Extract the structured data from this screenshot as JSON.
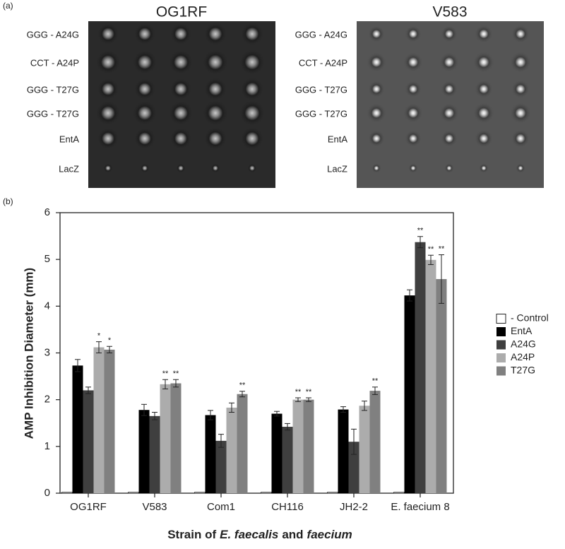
{
  "panel_a": {
    "label": "(a)",
    "plates": [
      {
        "title": "OG1RF",
        "rows": [
          "GGG - A24G",
          "CCT -  A24P",
          "GGG - T27G",
          "GGG - T27G",
          "EntA",
          "LacZ"
        ]
      },
      {
        "title": "V583",
        "rows": [
          "GGG - A24G",
          "CCT -  A24P",
          "GGG - T27G",
          "GGG - T27G",
          "EntA",
          "LacZ"
        ]
      }
    ]
  },
  "chart_data": {
    "type": "bar",
    "label": "(b)",
    "ylabel": "AMP Inhibition Diameter (mm)",
    "xlabel": [
      "Strain of",
      "E. faecalis",
      "and",
      "faecium"
    ],
    "categories": [
      "OG1RF",
      "V583",
      "Com1",
      "CH116",
      "JH2-2",
      "E. faecium 8"
    ],
    "ylim": [
      0,
      6
    ],
    "yticks": [
      0,
      1,
      2,
      3,
      4,
      5,
      6
    ],
    "legend": "right",
    "series": [
      {
        "name": "- Control",
        "color": "#ffffff",
        "values": [
          0.02,
          0.02,
          0.02,
          0.02,
          0.02,
          0.02
        ]
      },
      {
        "name": "EntA",
        "color": "#000000",
        "values": [
          2.73,
          1.78,
          1.67,
          1.7,
          1.79,
          4.23
        ],
        "errors": [
          0.13,
          0.12,
          0.1,
          0.05,
          0.06,
          0.12
        ],
        "significance": [
          null,
          null,
          null,
          null,
          null,
          null
        ]
      },
      {
        "name": "A24G",
        "color": "#3f3f3f",
        "values": [
          2.2,
          1.65,
          1.12,
          1.42,
          1.1,
          5.37
        ],
        "errors": [
          0.07,
          0.08,
          0.14,
          0.07,
          0.27,
          0.12
        ],
        "significance": [
          null,
          null,
          null,
          null,
          null,
          "**"
        ]
      },
      {
        "name": "A24P",
        "color": "#acacac",
        "values": [
          3.12,
          2.33,
          1.83,
          2.0,
          1.87,
          4.99
        ],
        "errors": [
          0.12,
          0.1,
          0.1,
          0.04,
          0.1,
          0.1
        ],
        "significance": [
          "*",
          "**",
          null,
          "**",
          null,
          "**"
        ]
      },
      {
        "name": "T27G",
        "color": "#808080",
        "values": [
          3.07,
          2.35,
          2.12,
          2.0,
          2.19,
          4.58
        ],
        "errors": [
          0.07,
          0.08,
          0.06,
          0.04,
          0.08,
          0.52
        ],
        "significance": [
          "*",
          "**",
          "**",
          "**",
          "**",
          "**"
        ]
      }
    ]
  }
}
